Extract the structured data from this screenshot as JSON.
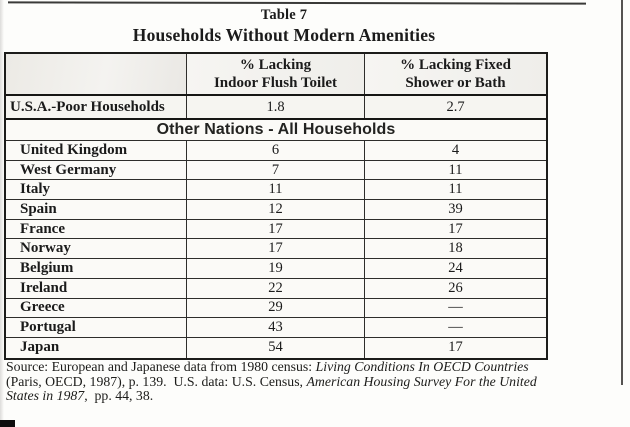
{
  "page": {
    "title_line1": "Table 7",
    "title_line2": "Households Without Modern Amenities"
  },
  "table": {
    "header": {
      "col2_line1": "% Lacking",
      "col2_line2": "Indoor Flush Toilet",
      "col3_line1": "% Lacking Fixed",
      "col3_line2": "Shower or Bath"
    },
    "usa_row": {
      "label": "U.S.A.-Poor Households",
      "toilet": "1.8",
      "shower": "2.7"
    },
    "section_header": "Other Nations - All Households",
    "rows": [
      {
        "country": "United Kingdom",
        "toilet": "6",
        "shower": "4"
      },
      {
        "country": "West Germany",
        "toilet": "7",
        "shower": "11"
      },
      {
        "country": "Italy",
        "toilet": "11",
        "shower": "11"
      },
      {
        "country": "Spain",
        "toilet": "12",
        "shower": "39"
      },
      {
        "country": "France",
        "toilet": "17",
        "shower": "17"
      },
      {
        "country": "Norway",
        "toilet": "17",
        "shower": "18"
      },
      {
        "country": "Belgium",
        "toilet": "19",
        "shower": "24"
      },
      {
        "country": "Ireland",
        "toilet": "22",
        "shower": "26"
      },
      {
        "country": "Greece",
        "toilet": "29",
        "shower": "—"
      },
      {
        "country": "Portugal",
        "toilet": "43",
        "shower": "—"
      },
      {
        "country": "Japan",
        "toilet": "54",
        "shower": "17"
      }
    ]
  },
  "source": {
    "line1_regular": "Source: European and Japanese data from 1980 census: ",
    "line1_italic": "Living Conditions In OECD Countries",
    "line2_regular": "(Paris, OECD, 1987), p. 139.  U.S. data: U.S. Census, ",
    "line2_italic": "American Housing Survey For the United",
    "line3_italic": "States in 1987",
    "line3_regular": ",  pp. 44, 38."
  }
}
